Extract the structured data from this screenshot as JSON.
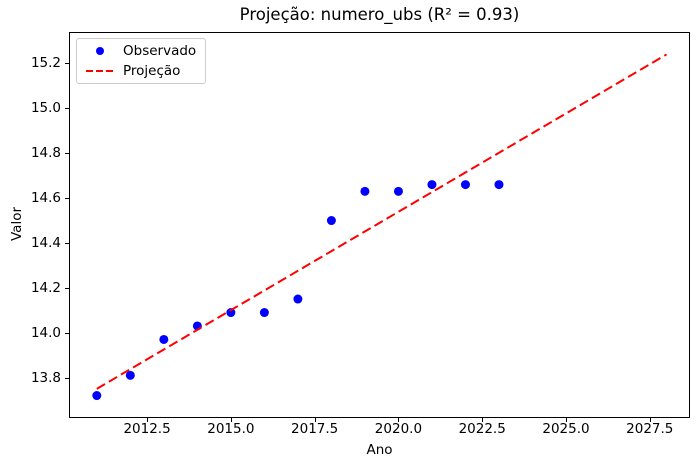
{
  "chart_data": {
    "type": "scatter",
    "title": "Projeção: numero_ubs (R² = 0.93)",
    "xlabel": "Ano",
    "ylabel": "Valor",
    "xlim": [
      2010.17,
      2028.7
    ],
    "ylim": [
      13.62,
      15.34
    ],
    "xticks": [
      2012.5,
      2015.0,
      2017.5,
      2020.0,
      2022.5,
      2025.0,
      2027.5
    ],
    "xtick_labels": [
      "2012.5",
      "2015.0",
      "2017.5",
      "2020.0",
      "2022.5",
      "2025.0",
      "2027.5"
    ],
    "yticks": [
      13.8,
      14.0,
      14.2,
      14.4,
      14.6,
      14.8,
      15.0,
      15.2
    ],
    "ytick_labels": [
      "13.8",
      "14.0",
      "14.2",
      "14.4",
      "14.6",
      "14.8",
      "15.0",
      "15.2"
    ],
    "grid": false,
    "legend": {
      "position": "upper-left"
    },
    "colors": {
      "observed": "#0000ff",
      "projection": "#ff0000",
      "spine": "#000000",
      "legend_border": "#cccccc"
    },
    "series": [
      {
        "name": "Observado",
        "type": "scatter",
        "color": "#0000ff",
        "x": [
          2011,
          2012,
          2013,
          2014,
          2015,
          2016,
          2017,
          2018,
          2019,
          2020,
          2021,
          2022,
          2023
        ],
        "y": [
          13.72,
          13.81,
          13.97,
          14.03,
          14.09,
          14.09,
          14.15,
          14.5,
          14.63,
          14.63,
          14.66,
          14.66,
          14.66
        ]
      },
      {
        "name": "Projeção",
        "type": "line",
        "style": "dashed",
        "color": "#ff0000",
        "x": [
          2011,
          2028
        ],
        "y": [
          13.75,
          15.24
        ]
      }
    ]
  }
}
